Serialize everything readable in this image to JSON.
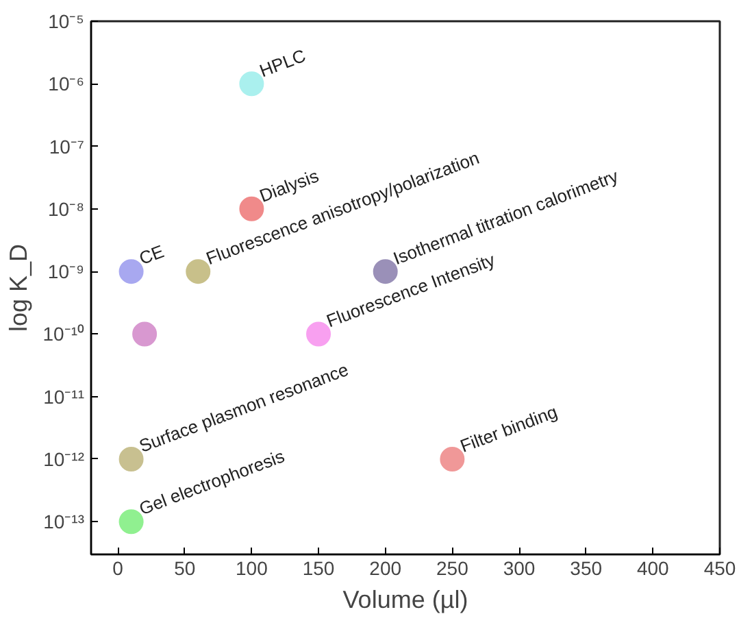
{
  "chart_data": {
    "type": "scatter",
    "xlabel": "Volume (µl)",
    "ylabel": "log K_D",
    "x": [
      100,
      100,
      10,
      60,
      200,
      20,
      150,
      10,
      250,
      10
    ],
    "values": [
      1e-06,
      1e-08,
      1e-09,
      1e-09,
      1e-09,
      1e-10,
      1e-10,
      1e-12,
      1e-12,
      1e-13
    ],
    "colors": [
      "#aaf0ee",
      "#f08a8a",
      "#a8a8f0",
      "#c8c08a",
      "#9a90b8",
      "#d898d0",
      "#f8a0f0",
      "#c8c090",
      "#f09898",
      "#90f090"
    ],
    "annotations": [
      {
        "text": "HPLC",
        "x": 100,
        "y": 1e-06
      },
      {
        "text": "Dialysis",
        "x": 100,
        "y": 1e-08
      },
      {
        "text": "CE",
        "x": 10,
        "y": 1e-09
      },
      {
        "text": "Fluorescence anisotropy/polarization",
        "x": 60,
        "y": 1e-09
      },
      {
        "text": "Isothermal titration calorimetry",
        "x": 200,
        "y": 1e-09
      },
      {
        "text": "Fluorescence Intensity",
        "x": 150,
        "y": 1e-10
      },
      {
        "text": "Surface plasmon resonance",
        "x": 10,
        "y": 1e-12
      },
      {
        "text": "Filter binding",
        "x": 250,
        "y": 1e-12
      },
      {
        "text": "Gel electrophoresis",
        "x": 10,
        "y": 1e-13
      }
    ],
    "log": "y",
    "marker": "circle",
    "grid": false,
    "xlim": [
      -20,
      450
    ],
    "xticks": [
      0,
      50,
      100,
      150,
      200,
      250,
      300,
      350,
      400,
      450
    ],
    "ylim": [
      3e-14,
      1e-05
    ],
    "yticks": [
      {
        "value": 1e-05,
        "label": "10⁻⁵"
      },
      {
        "value": 1e-06,
        "label": "10⁻⁶"
      },
      {
        "value": 1e-07,
        "label": "10⁻⁷"
      },
      {
        "value": 1e-08,
        "label": "10⁻⁸"
      },
      {
        "value": 1e-09,
        "label": "10⁻⁹"
      },
      {
        "value": 1e-10,
        "label": "10⁻¹⁰"
      },
      {
        "value": 1e-11,
        "label": "10⁻¹¹"
      },
      {
        "value": 1e-12,
        "label": "10⁻¹²"
      },
      {
        "value": 1e-13,
        "label": "10⁻¹³"
      }
    ]
  }
}
